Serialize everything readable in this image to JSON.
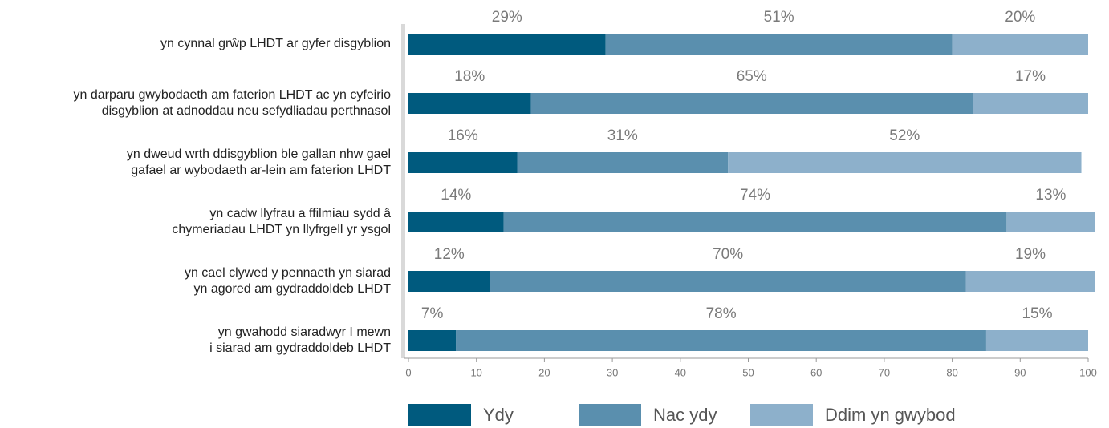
{
  "chart_data": {
    "type": "stacked-barh",
    "categories": [
      [
        "yn cynnal grŵp LHDT ar gyfer disgyblion"
      ],
      [
        "yn darparu gwybodaeth am faterion LHDT ac yn cyfeirio",
        "disgyblion at adnoddau neu sefydliadau perthnasol"
      ],
      [
        "yn dweud wrth ddisgyblion ble gallan nhw gael",
        "gafael ar wybodaeth ar-lein am faterion LHDT"
      ],
      [
        "yn cadw llyfrau a ffilmiau sydd â",
        "chymeriadau LHDT yn llyfrgell yr ysgol"
      ],
      [
        "yn cael clywed y pennaeth yn siarad",
        "yn agored am gydraddoldeb LHDT"
      ],
      [
        "yn gwahodd siaradwyr I mewn",
        "i siarad am gydraddoldeb LHDT"
      ]
    ],
    "series": [
      {
        "name": "Ydy",
        "color": "#005a7e",
        "values": [
          29,
          18,
          16,
          14,
          12,
          7
        ],
        "value_labels": [
          "29%",
          "18%",
          "16%",
          "14%",
          "12%",
          "7%"
        ]
      },
      {
        "name": "Nac ydy",
        "color": "#5a8fae",
        "values": [
          51,
          65,
          31,
          74,
          70,
          78
        ],
        "value_labels": [
          "51%",
          "65%",
          "31%",
          "74%",
          "70%",
          "78%"
        ]
      },
      {
        "name": "Ddim yn gwybod",
        "color": "#8db0cb",
        "values": [
          20,
          17,
          52,
          13,
          19,
          15
        ],
        "value_labels": [
          "20%",
          "17%",
          "52%",
          "13%",
          "19%",
          "15%"
        ]
      }
    ],
    "xlim": [
      0,
      100
    ],
    "xticks": [
      0,
      10,
      20,
      30,
      40,
      50,
      60,
      70,
      80,
      90,
      100
    ],
    "legend": "bottom"
  }
}
